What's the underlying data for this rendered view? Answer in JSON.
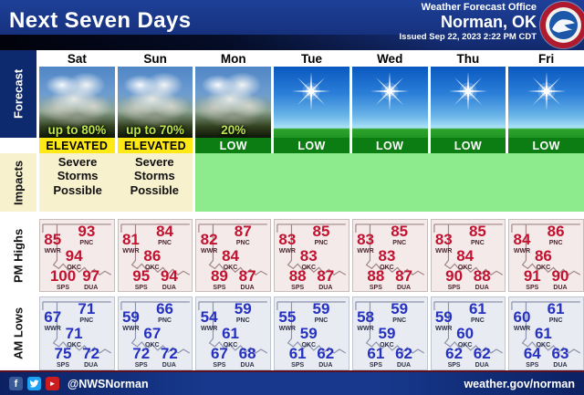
{
  "header": {
    "title": "Next Seven Days",
    "office_line1": "Weather Forecast Office",
    "office_line2": "Norman, OK",
    "issued": "Issued Sep 22, 2023 2:22 PM CDT"
  },
  "row_labels": {
    "forecast": "Forecast",
    "impacts": "Impacts",
    "pm_highs": "PM Highs",
    "am_lows": "AM Lows"
  },
  "stations": [
    "PNC",
    "WWR",
    "OKC",
    "SPS",
    "DUA"
  ],
  "columns": [
    {
      "day": "Sat",
      "icon": "thunderstorm",
      "probability": "up to 80%",
      "risk": "ELEVATED",
      "impact": "Severe Storms Possible",
      "highs": {
        "PNC": 93,
        "WWR": 85,
        "OKC": 94,
        "SPS": 100,
        "DUA": 97
      },
      "lows": {
        "PNC": 71,
        "WWR": 67,
        "OKC": 71,
        "SPS": 75,
        "DUA": 72
      }
    },
    {
      "day": "Sun",
      "icon": "thunderstorm",
      "probability": "up to 70%",
      "risk": "ELEVATED",
      "impact": "Severe Storms Possible",
      "highs": {
        "PNC": 84,
        "WWR": 81,
        "OKC": 86,
        "SPS": 95,
        "DUA": 94
      },
      "lows": {
        "PNC": 66,
        "WWR": 59,
        "OKC": 67,
        "SPS": 72,
        "DUA": 72
      }
    },
    {
      "day": "Mon",
      "icon": "thunderstorm",
      "probability": "20%",
      "risk": "LOW",
      "impact": "",
      "highs": {
        "PNC": 87,
        "WWR": 82,
        "OKC": 84,
        "SPS": 89,
        "DUA": 87
      },
      "lows": {
        "PNC": 59,
        "WWR": 54,
        "OKC": 61,
        "SPS": 67,
        "DUA": 68
      }
    },
    {
      "day": "Tue",
      "icon": "sunny",
      "probability": "",
      "risk": "LOW",
      "impact": "",
      "highs": {
        "PNC": 85,
        "WWR": 83,
        "OKC": 83,
        "SPS": 88,
        "DUA": 87
      },
      "lows": {
        "PNC": 59,
        "WWR": 55,
        "OKC": 59,
        "SPS": 61,
        "DUA": 62
      }
    },
    {
      "day": "Wed",
      "icon": "sunny",
      "probability": "",
      "risk": "LOW",
      "impact": "",
      "highs": {
        "PNC": 85,
        "WWR": 83,
        "OKC": 83,
        "SPS": 88,
        "DUA": 87
      },
      "lows": {
        "PNC": 59,
        "WWR": 58,
        "OKC": 59,
        "SPS": 61,
        "DUA": 62
      }
    },
    {
      "day": "Thu",
      "icon": "sunny",
      "probability": "",
      "risk": "LOW",
      "impact": "",
      "highs": {
        "PNC": 85,
        "WWR": 83,
        "OKC": 84,
        "SPS": 90,
        "DUA": 88
      },
      "lows": {
        "PNC": 61,
        "WWR": 59,
        "OKC": 60,
        "SPS": 62,
        "DUA": 62
      }
    },
    {
      "day": "Fri",
      "icon": "sunny",
      "probability": "",
      "risk": "LOW",
      "impact": "",
      "highs": {
        "PNC": 86,
        "WWR": 84,
        "OKC": 86,
        "SPS": 91,
        "DUA": 90
      },
      "lows": {
        "PNC": 61,
        "WWR": 60,
        "OKC": 61,
        "SPS": 64,
        "DUA": 63
      }
    }
  ],
  "footer": {
    "handle": "@NWSNorman",
    "website": "weather.gov/norman",
    "social_icons": [
      "facebook-icon",
      "twitter-icon",
      "youtube-icon"
    ],
    "youtube_glyph": "►"
  },
  "colors": {
    "header_bg": "#16317d",
    "elevated_bg": "#ffe915",
    "low_bg": "#0c7d12",
    "impacts_active_bg": "#f7f1cd",
    "impacts_quiet_bg": "#8deb8d",
    "highs_number": "#c11330",
    "lows_number": "#2531c0",
    "probability_text": "#bce54d"
  },
  "chart_data": {
    "type": "table",
    "title": "Next Seven Days — Weather Forecast Office Norman, OK (Issued Sep 22, 2023 2:22 PM CDT)",
    "categories": [
      "Sat",
      "Sun",
      "Mon",
      "Tue",
      "Wed",
      "Thu",
      "Fri"
    ],
    "storm_probability": [
      "up to 80%",
      "up to 70%",
      "20%",
      "",
      "",
      "",
      ""
    ],
    "risk_level": [
      "ELEVATED",
      "ELEVATED",
      "LOW",
      "LOW",
      "LOW",
      "LOW",
      "LOW"
    ],
    "impacts": [
      "Severe Storms Possible",
      "Severe Storms Possible",
      "",
      "",
      "",
      "",
      ""
    ],
    "series": [
      {
        "name": "PM High PNC",
        "values": [
          93,
          84,
          87,
          85,
          85,
          85,
          86
        ]
      },
      {
        "name": "PM High WWR",
        "values": [
          85,
          81,
          82,
          83,
          83,
          83,
          84
        ]
      },
      {
        "name": "PM High OKC",
        "values": [
          94,
          86,
          84,
          83,
          83,
          84,
          86
        ]
      },
      {
        "name": "PM High SPS",
        "values": [
          100,
          95,
          89,
          88,
          88,
          90,
          91
        ]
      },
      {
        "name": "PM High DUA",
        "values": [
          97,
          94,
          87,
          87,
          87,
          88,
          90
        ]
      },
      {
        "name": "AM Low PNC",
        "values": [
          71,
          66,
          59,
          59,
          59,
          61,
          61
        ]
      },
      {
        "name": "AM Low WWR",
        "values": [
          67,
          59,
          54,
          55,
          58,
          59,
          60
        ]
      },
      {
        "name": "AM Low OKC",
        "values": [
          71,
          67,
          61,
          59,
          59,
          60,
          61
        ]
      },
      {
        "name": "AM Low SPS",
        "values": [
          75,
          72,
          67,
          61,
          61,
          62,
          64
        ]
      },
      {
        "name": "AM Low DUA",
        "values": [
          72,
          72,
          68,
          62,
          62,
          62,
          63
        ]
      }
    ]
  }
}
